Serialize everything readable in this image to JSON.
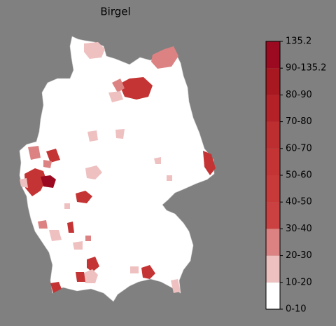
{
  "title": "Birgel",
  "colorbar": {
    "labels": [
      "0-10",
      "10-20",
      "20-30",
      "30-40",
      "40-50",
      "50-60",
      "60-70",
      "70-80",
      "80-90",
      "90-135.2",
      "135.2"
    ],
    "colors": [
      "#ffffff",
      "#efc0c0",
      "#dc8282",
      "#cb4040",
      "#c83a3a",
      "#c43434",
      "#bd2e30",
      "#b42228",
      "#a81820",
      "#9b0a20"
    ]
  }
}
